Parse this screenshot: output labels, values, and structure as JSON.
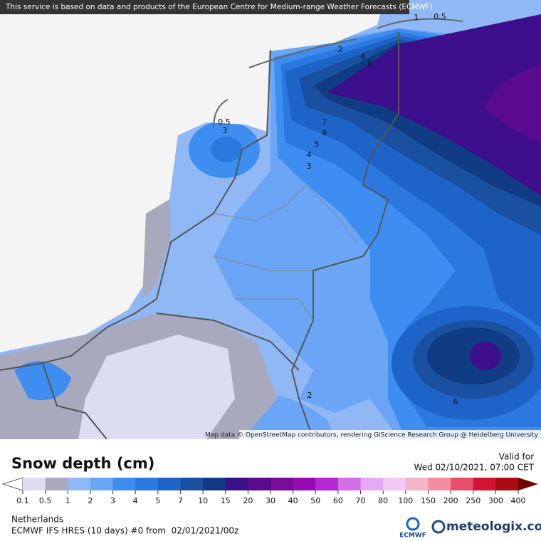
{
  "header": {
    "source_note": "This service is based on data and products of the European Centre for Medium-range Weather Forecasts (ECMWF)",
    "attribution": "Map data © OpenStreetMap contributors, rendering GIScience Research Group @ Heidelberg University"
  },
  "map": {
    "contour_labels": [
      "1",
      "0.5",
      "2",
      "4",
      "6",
      "0.5",
      "3",
      "7",
      "6",
      "5",
      "4",
      "3",
      "2",
      "6"
    ]
  },
  "legend": {
    "title": "Snow depth (cm)",
    "valid_label": "Valid for",
    "valid_time": "Wed 02/10/2021, 07:00 CET",
    "levels": [
      0.1,
      0.5,
      1,
      2,
      3,
      4,
      5,
      7,
      10,
      15,
      20,
      30,
      40,
      50,
      60,
      70,
      80,
      100,
      150,
      200,
      250,
      300,
      400
    ],
    "colors": [
      "#dcdcf2",
      "#a9a9bd",
      "#8fb8f5",
      "#6aa6f5",
      "#3e8df0",
      "#2a78e0",
      "#1e64c8",
      "#19509f",
      "#0f3c82",
      "#3e0f8c",
      "#5a0a8c",
      "#780a9c",
      "#9a0ab4",
      "#b428d2",
      "#d26ee6",
      "#e6aaf2",
      "#f2c8f5",
      "#f5b4c8",
      "#f58ca0",
      "#e6506e",
      "#d21432",
      "#aa0a14"
    ],
    "over_color": "#6e0000"
  },
  "footer": {
    "region": "Netherlands",
    "model_run": "ECMWF IFS HRES (10 days) #0 from  02/01/2021/00z",
    "ecmwf_logo": "ECMWF",
    "brand": "meteologix.com"
  }
}
